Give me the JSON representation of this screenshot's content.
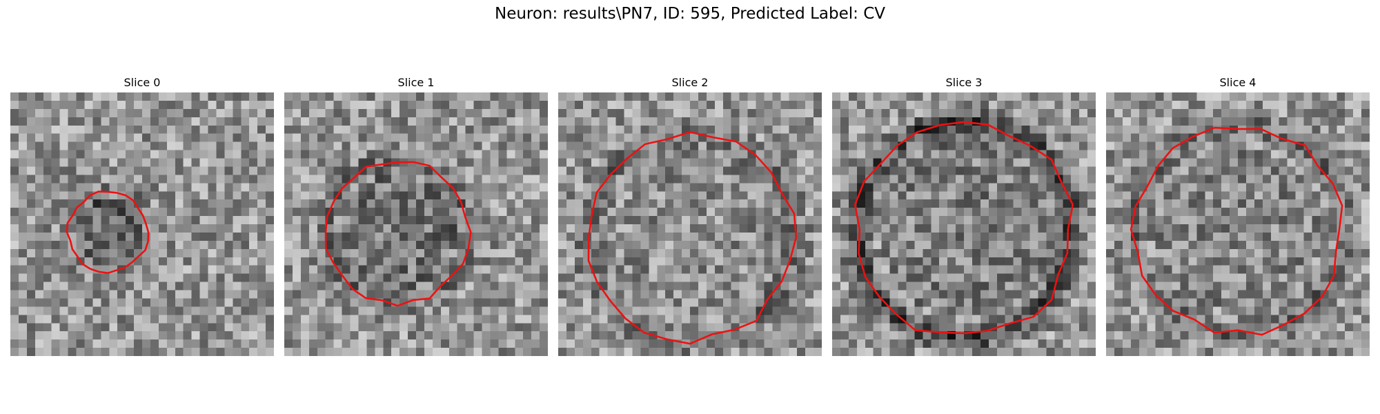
{
  "figure": {
    "title": "Neuron: results\\PN7, ID: 595, Predicted Label: CV",
    "contour_color": "#ee1111",
    "colormap": "gray",
    "panels": [
      {
        "title": "Slice 0",
        "contour_radius": 0.152,
        "center_dark": 0.6,
        "ring_dark": 0.25
      },
      {
        "title": "Slice 1",
        "contour_radius": 0.272,
        "center_dark": 0.45,
        "ring_dark": 0.35
      },
      {
        "title": "Slice 2",
        "contour_radius": 0.39,
        "center_dark": 0.1,
        "ring_dark": 0.35
      },
      {
        "title": "Slice 3",
        "contour_radius": 0.41,
        "center_dark": 0.3,
        "ring_dark": 0.7
      },
      {
        "title": "Slice 4",
        "contour_radius": 0.395,
        "center_dark": 0.2,
        "ring_dark": 0.35
      }
    ]
  }
}
